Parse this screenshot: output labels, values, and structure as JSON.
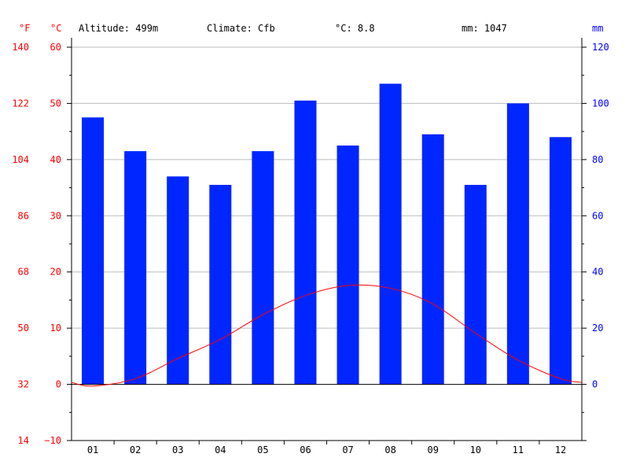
{
  "header": {
    "altitude": "Altitude: 499m",
    "climate": "Climate: Cfb",
    "temp": "°C: 8.8",
    "precip": "mm: 1047"
  },
  "units": {
    "f": "°F",
    "c": "°C",
    "mm": "mm"
  },
  "colors": {
    "bars": "#0026ff",
    "line": "#ff0000",
    "grid": "#bbbbbb",
    "left_axis": "#ff0000",
    "right_axis": "#0000ff"
  },
  "chart_data": {
    "type": "bar",
    "categories": [
      "01",
      "02",
      "03",
      "04",
      "05",
      "06",
      "07",
      "08",
      "09",
      "10",
      "11",
      "12"
    ],
    "series": [
      {
        "name": "mm",
        "type": "bar",
        "axis": "right",
        "values": [
          95,
          83,
          74,
          71,
          83,
          101,
          85,
          107,
          89,
          71,
          100,
          88
        ]
      },
      {
        "name": "°C",
        "type": "line",
        "axis": "left",
        "values": [
          -0.3,
          1.0,
          4.6,
          8.0,
          12.4,
          15.8,
          17.6,
          17.1,
          14.3,
          9.1,
          4.3,
          1.0
        ]
      }
    ],
    "left_axis": {
      "unit": "°C",
      "ylim": [
        -10,
        60
      ],
      "ticks": [
        -10,
        0,
        10,
        20,
        30,
        40,
        50,
        60
      ]
    },
    "fahrenheit_axis": {
      "unit": "°F",
      "ticks": [
        14,
        32,
        50,
        68,
        86,
        104,
        122,
        140
      ]
    },
    "right_axis": {
      "unit": "mm",
      "ylim": [
        -20,
        120
      ],
      "ticks": [
        0,
        20,
        40,
        60,
        80,
        100,
        120
      ]
    },
    "grid": true
  }
}
